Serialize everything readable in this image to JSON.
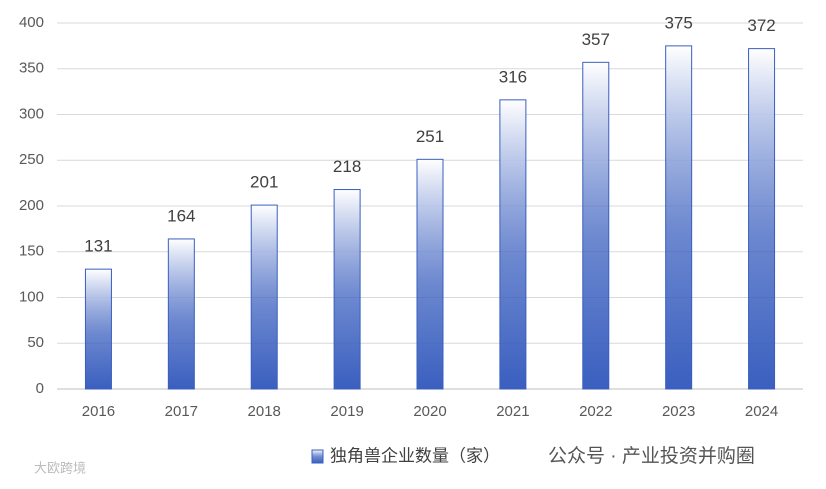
{
  "chart_data": {
    "type": "bar",
    "categories": [
      "2016",
      "2017",
      "2018",
      "2019",
      "2020",
      "2021",
      "2022",
      "2023",
      "2024"
    ],
    "series": [
      {
        "name": "独角兽企业数量（家）",
        "color": "#3a5fbf",
        "values": [
          131,
          164,
          201,
          218,
          251,
          316,
          357,
          375,
          372
        ]
      }
    ],
    "ylim": [
      0,
      400
    ],
    "yticks": [
      0,
      50,
      100,
      150,
      200,
      250,
      300,
      350,
      400
    ],
    "grid": true,
    "legend": "bottom"
  },
  "watermarks": [
    "公众号 · 产业投资并购圈",
    "大欧跨境"
  ]
}
